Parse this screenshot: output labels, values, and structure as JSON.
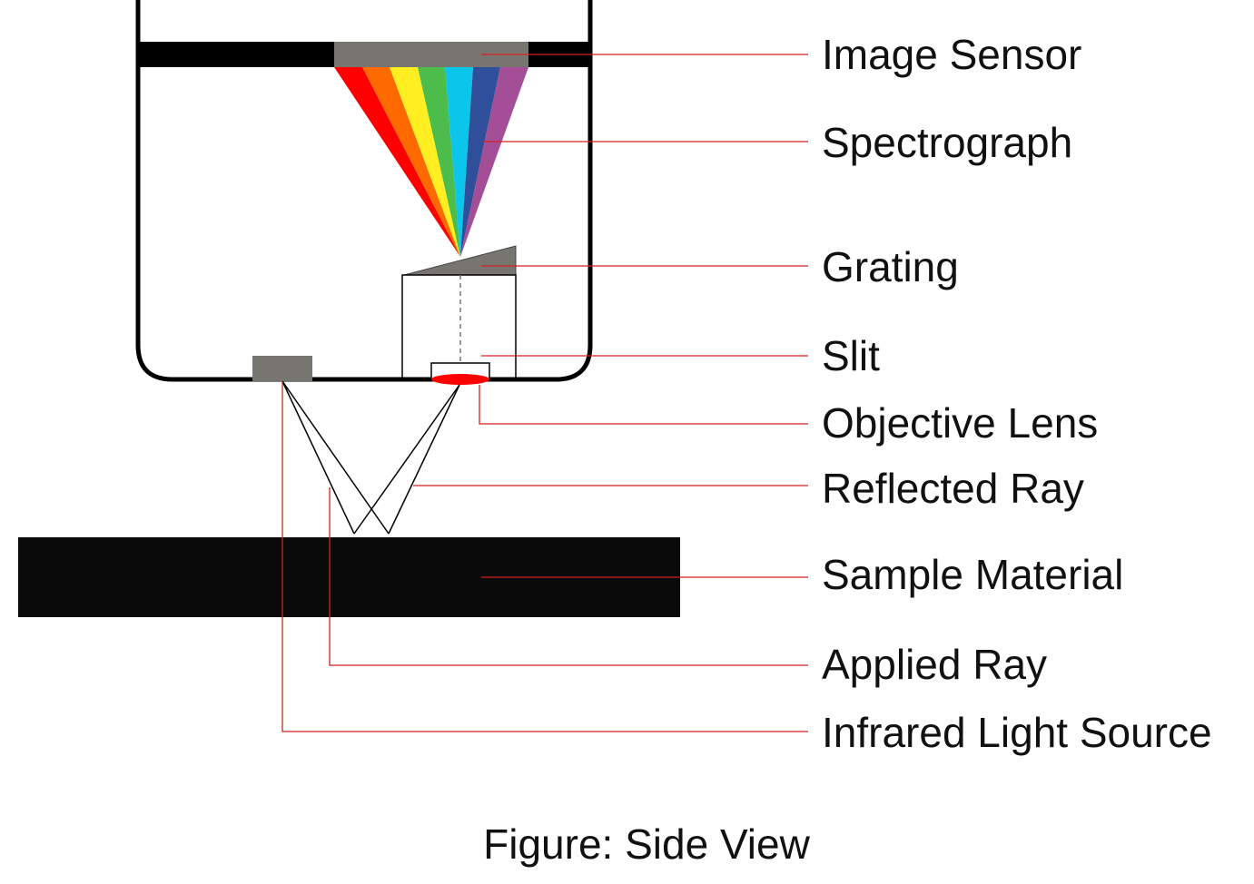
{
  "diagram": {
    "labels": {
      "image_sensor": "Image Sensor",
      "spectrograph": "Spectrograph",
      "grating": "Grating",
      "slit": "Slit",
      "objective_lens": "Objective Lens",
      "reflected_ray": "Reflected Ray",
      "sample_material": "Sample Material",
      "applied_ray": "Applied Ray",
      "infrared_light_source": "Infrared Light Source"
    },
    "caption": "Figure: Side View",
    "colors": {
      "leader_line": "#d42020",
      "housing": "#000000",
      "sensor": "#77756f",
      "sample": "#0a0a0a",
      "lens": "#ff0000",
      "spectrum": [
        "#ff0000",
        "#ff6a00",
        "#ffee22",
        "#4cbc4a",
        "#0bc6ea",
        "#2f4f9a",
        "#a44e97"
      ]
    }
  }
}
